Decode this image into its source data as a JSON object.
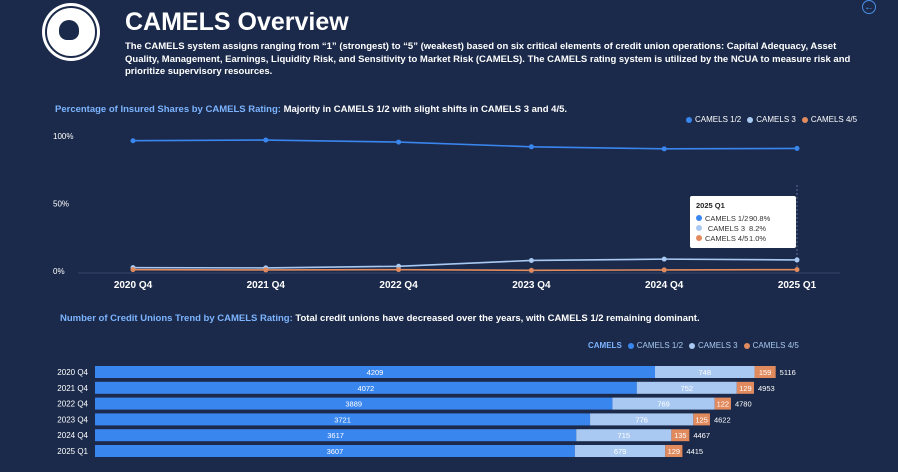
{
  "header": {
    "title": "CAMELS Overview",
    "description": "The CAMELS system assigns ranging from “1” (strongest) to “5” (weakest) based on six critical elements of credit union operations: Capital Adequacy, Asset Quality, Management, Earnings, Liquidity Risk, and Sensitivity to Market Risk (CAMELS). The CAMELS rating system is utilized by the NCUA to measure risk and prioritize supervisory resources."
  },
  "colors": {
    "camels12": "#3a86ef",
    "camels3": "#a9c9f2",
    "camels45": "#e08a5e",
    "accent": "#7cb4ff"
  },
  "line_section": {
    "lead": "Percentage of Insured Shares by CAMELS Rating:",
    "rest": " Majority in CAMELS 1/2 with slight shifts in CAMELS 3 and 4/5."
  },
  "bar_section": {
    "lead": "Number of Credit Unions Trend by CAMELS Rating:",
    "rest": " Total credit unions have decreased over the years, with CAMELS 1/2 remaining dominant."
  },
  "tooltip": {
    "title": "2025 Q1",
    "rows": [
      {
        "name": "CAMELS 1/2",
        "value": "90.8%"
      },
      {
        "name": "CAMELS 3",
        "value": "8.2%"
      },
      {
        "name": "CAMELS 4/5",
        "value": "1.0%"
      }
    ]
  },
  "chart_data": [
    {
      "type": "line",
      "title": "Percentage of Insured Shares by CAMELS Rating",
      "categories": [
        "2020 Q4",
        "2021 Q4",
        "2022 Q4",
        "2023 Q4",
        "2024 Q4",
        "2025 Q1"
      ],
      "yticks": [
        "100%",
        "50%",
        "0%"
      ],
      "ylim": [
        0,
        100
      ],
      "legend": [
        "CAMELS 1/2",
        "CAMELS 3",
        "CAMELS 4/5"
      ],
      "legend_position": "top-right",
      "grid": false,
      "series": [
        {
          "name": "CAMELS 1/2",
          "values": [
            96.5,
            97.0,
            95.5,
            92.0,
            90.5,
            90.8
          ]
        },
        {
          "name": "CAMELS 3",
          "values": [
            2.5,
            2.3,
            3.5,
            7.8,
            8.8,
            8.2
          ]
        },
        {
          "name": "CAMELS 4/5",
          "values": [
            1.0,
            0.8,
            1.0,
            0.5,
            0.8,
            1.0
          ]
        }
      ]
    },
    {
      "type": "bar",
      "orientation": "horizontal-stacked",
      "title": "Number of Credit Unions Trend by CAMELS Rating",
      "categories": [
        "2020 Q4",
        "2021 Q4",
        "2022 Q4",
        "2023 Q4",
        "2024 Q4",
        "2025 Q1"
      ],
      "legend_title": "CAMELS",
      "legend": [
        "CAMELS 1/2",
        "CAMELS 3",
        "CAMELS 4/5"
      ],
      "legend_position": "top-right",
      "series": [
        {
          "name": "CAMELS 1/2",
          "values": [
            4209,
            4072,
            3889,
            3721,
            3617,
            3607
          ]
        },
        {
          "name": "CAMELS 3",
          "values": [
            748,
            752,
            769,
            776,
            715,
            679
          ]
        },
        {
          "name": "CAMELS 4/5",
          "values": [
            159,
            129,
            122,
            125,
            135,
            129
          ]
        }
      ],
      "totals": [
        5116,
        4953,
        4780,
        4622,
        4467,
        4415
      ]
    }
  ]
}
